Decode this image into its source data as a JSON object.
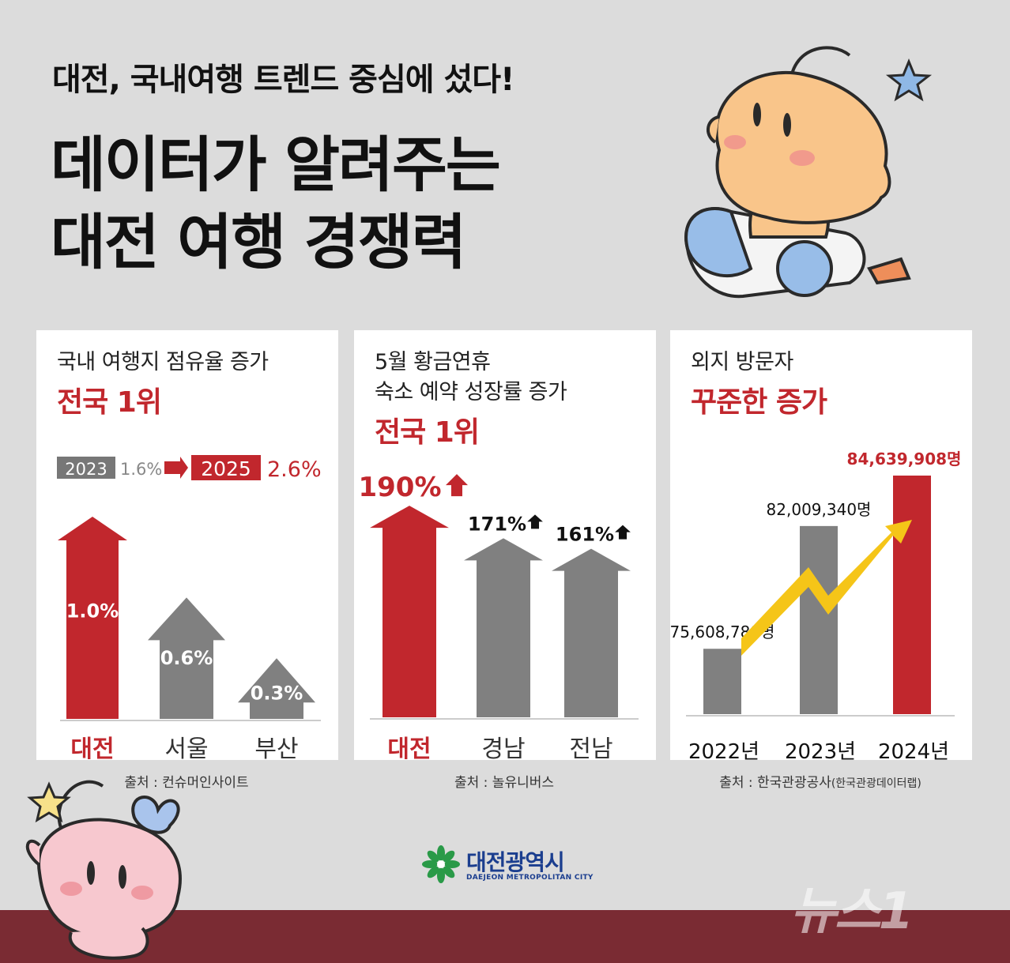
{
  "header": {
    "subtitle": "대전, 국내여행 트렌드 중심에 섰다!",
    "title_line1": "데이터가 알려주는",
    "title_line2": "대전 여행 경쟁력"
  },
  "panels": [
    {
      "title": "국내 여행지 점유율 증가",
      "highlight": "전국 1위",
      "compare": {
        "from_year": "2023",
        "from_value": "1.6%",
        "to_year": "2025",
        "to_value": "2.6%"
      },
      "source": "출처 : 컨슈머인사이트"
    },
    {
      "title_line1": "5월 황금연휴",
      "title_line2": "숙소 예약 성장률 증가",
      "highlight": "전국 1위",
      "source": "출처 : 놀유니버스"
    },
    {
      "title": "외지 방문자",
      "highlight": "꾸준한 증가",
      "source_main": "출처 : 한국관광공사",
      "source_sub": "(한국관광데이터랩)"
    }
  ],
  "chart_data": [
    {
      "type": "bar",
      "categories": [
        "대전",
        "서울",
        "부산"
      ],
      "values": [
        1.0,
        0.6,
        0.3
      ],
      "labels": [
        "1.0%",
        "0.6%",
        "0.3%"
      ],
      "ylim": [
        0,
        1.25
      ],
      "colors": [
        "#c1272d",
        "#808080",
        "#808080"
      ]
    },
    {
      "type": "bar",
      "categories": [
        "대전",
        "경남",
        "전남"
      ],
      "values": [
        190,
        171,
        161
      ],
      "labels": [
        "190%",
        "171%",
        "161%"
      ],
      "ylim": [
        0,
        200
      ],
      "colors": [
        "#c1272d",
        "#808080",
        "#808080"
      ]
    },
    {
      "type": "bar",
      "categories": [
        "2022년",
        "2023년",
        "2024년"
      ],
      "values": [
        75608788,
        82009340,
        84639908
      ],
      "labels": [
        "75,608,788명",
        "82,009,340명",
        "84,639,908명"
      ],
      "colors": [
        "#808080",
        "#808080",
        "#c1272d"
      ]
    }
  ],
  "logo": {
    "name": "대전광역시",
    "subtitle": "DAEJEON METROPOLITAN CITY"
  },
  "watermark": "뉴스1",
  "colors": {
    "accent_red": "#c1272d",
    "bar_gray": "#808080",
    "arrow_yellow": "#f5c518",
    "band": "#7a2b33"
  }
}
